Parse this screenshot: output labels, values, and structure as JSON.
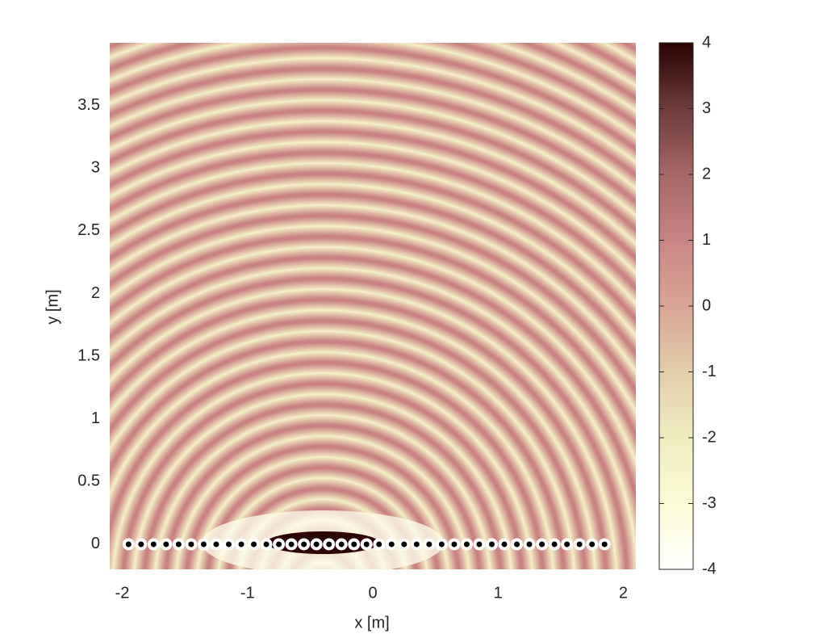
{
  "chart_data": {
    "type": "heatmap",
    "xlabel": "x [m]",
    "ylabel": "y [m]",
    "xlim": [
      -2.1,
      2.1
    ],
    "ylim": [
      -0.2,
      4
    ],
    "xticks": [
      -2,
      -1,
      0,
      1,
      2
    ],
    "yticks": [
      0,
      0.5,
      1,
      1.5,
      2,
      2.5,
      3,
      3.5
    ],
    "colorbar": {
      "lim": [
        -4,
        4
      ],
      "ticks": [
        -4,
        -3,
        -2,
        -1,
        0,
        1,
        2,
        3,
        4
      ],
      "colors": [
        "#ffffff",
        "#fbfbd6",
        "#f0ecc0",
        "#e2cdaa",
        "#d9a595",
        "#c98585",
        "#a66767",
        "#6e3b3b",
        "#2a0303"
      ]
    },
    "sources": {
      "x": [
        -1.95,
        -1.85,
        -1.75,
        -1.65,
        -1.55,
        -1.45,
        -1.35,
        -1.25,
        -1.15,
        -1.05,
        -0.95,
        -0.85,
        -0.75,
        -0.65,
        -0.55,
        -0.45,
        -0.35,
        -0.25,
        -0.15,
        -0.05,
        0.05,
        0.15,
        0.25,
        0.35,
        0.45,
        0.55,
        0.65,
        0.75,
        0.85,
        0.95,
        1.05,
        1.15,
        1.25,
        1.35,
        1.45,
        1.55,
        1.65,
        1.75,
        1.85
      ],
      "y": [
        0,
        0,
        0,
        0,
        0,
        0,
        0,
        0,
        0,
        0,
        0,
        0,
        0,
        0,
        0,
        0,
        0,
        0,
        0,
        0,
        0,
        0,
        0,
        0,
        0,
        0,
        0,
        0,
        0,
        0,
        0,
        0,
        0,
        0,
        0,
        0,
        0,
        0,
        0
      ]
    }
  }
}
